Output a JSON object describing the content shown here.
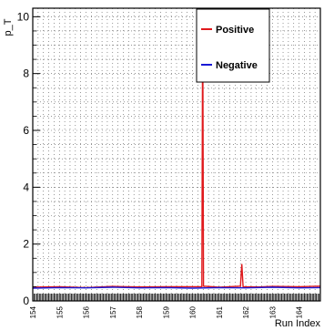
{
  "chart_data": {
    "type": "line",
    "title": "",
    "xlabel": "Run Index",
    "ylabel": "p_T",
    "xlim": [
      154,
      164.8
    ],
    "ylim": [
      0,
      10.3
    ],
    "grid": true,
    "legend_position": "top-right",
    "y_ticks": [
      "0",
      "2",
      "4",
      "6",
      "8",
      "10"
    ],
    "x_tick_labels": [
      "154",
      "155",
      "156",
      "157",
      "158",
      "159",
      "160",
      "161",
      "162",
      "163",
      "164"
    ],
    "series": [
      {
        "name": "Positive",
        "color": "#e0191c",
        "points": [
          [
            154,
            0.48
          ],
          [
            155,
            0.5
          ],
          [
            156,
            0.47
          ],
          [
            157,
            0.51
          ],
          [
            158,
            0.49
          ],
          [
            159,
            0.5
          ],
          [
            160.35,
            0.5
          ],
          [
            160.38,
            10.3
          ],
          [
            160.41,
            0.52
          ],
          [
            161.0,
            0.48
          ],
          [
            161.8,
            0.52
          ],
          [
            161.85,
            1.3
          ],
          [
            161.9,
            0.5
          ],
          [
            162.5,
            0.49
          ],
          [
            163.0,
            0.51
          ],
          [
            164.0,
            0.5
          ],
          [
            164.8,
            0.52
          ]
        ]
      },
      {
        "name": "Negative",
        "color": "#1a1ad6",
        "points": [
          [
            154,
            0.45
          ],
          [
            155,
            0.47
          ],
          [
            156,
            0.46
          ],
          [
            157,
            0.48
          ],
          [
            158,
            0.46
          ],
          [
            159,
            0.47
          ],
          [
            160,
            0.45
          ],
          [
            161,
            0.47
          ],
          [
            162,
            0.46
          ],
          [
            163,
            0.48
          ],
          [
            164,
            0.46
          ],
          [
            164.8,
            0.47
          ]
        ]
      }
    ]
  }
}
